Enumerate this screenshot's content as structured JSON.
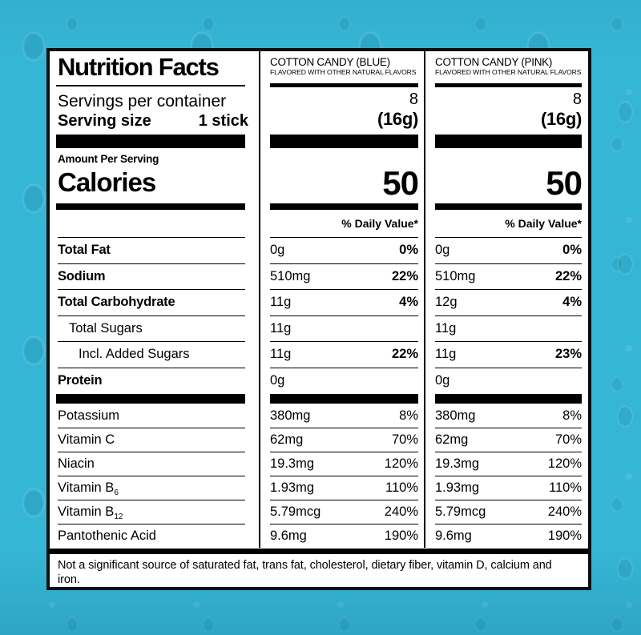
{
  "header": {
    "title": "Nutrition Facts"
  },
  "serving": {
    "per_container_label": "Servings per container",
    "size_label": "Serving size",
    "size_value": "1 stick"
  },
  "calories_section": {
    "amount_per_serving_label": "Amount Per Serving",
    "calories_label": "Calories"
  },
  "dv_header": "% Daily Value*",
  "columns": {
    "blue": {
      "name": "COTTON CANDY (BLUE)",
      "subtitle": "FLAVORED WITH OTHER NATURAL FLAVORS",
      "servings": "8",
      "serving_size": "(16g)",
      "calories": "50"
    },
    "pink": {
      "name": "COTTON CANDY (PINK)",
      "subtitle": "FLAVORED WITH OTHER NATURAL FLAVORS",
      "servings": "8",
      "serving_size": "(16g)",
      "calories": "50"
    }
  },
  "rows": [
    {
      "label": "Total Fat",
      "blue_amount": "0g",
      "blue_dv": "0%",
      "pink_amount": "0g",
      "pink_dv": "0%"
    },
    {
      "label": "Sodium",
      "blue_amount": "510mg",
      "blue_dv": "22%",
      "pink_amount": "510mg",
      "pink_dv": "22%"
    },
    {
      "label": "Total Carbohydrate",
      "blue_amount": "11g",
      "blue_dv": "4%",
      "pink_amount": "12g",
      "pink_dv": "4%"
    },
    {
      "label": "Total Sugars",
      "blue_amount": "11g",
      "blue_dv": "",
      "pink_amount": "11g",
      "pink_dv": ""
    },
    {
      "label": "Incl. Added Sugars",
      "blue_amount": "11g",
      "blue_dv": "22%",
      "pink_amount": "11g",
      "pink_dv": "23%"
    },
    {
      "label": "Protein",
      "blue_amount": "0g",
      "blue_dv": "",
      "pink_amount": "0g",
      "pink_dv": ""
    },
    {
      "label": "Potassium",
      "blue_amount": "380mg",
      "blue_dv": "8%",
      "pink_amount": "380mg",
      "pink_dv": "8%"
    },
    {
      "label": "Vitamin C",
      "blue_amount": "62mg",
      "blue_dv": "70%",
      "pink_amount": "62mg",
      "pink_dv": "70%"
    },
    {
      "label": "Niacin",
      "blue_amount": "19.3mg",
      "blue_dv": "120%",
      "pink_amount": "19.3mg",
      "pink_dv": "120%"
    },
    {
      "label": "Vitamin B",
      "label_sub": "6",
      "blue_amount": "1.93mg",
      "blue_dv": "110%",
      "pink_amount": "1.93mg",
      "pink_dv": "110%"
    },
    {
      "label": "Vitamin B",
      "label_sub": "12",
      "blue_amount": "5.79mcg",
      "blue_dv": "240%",
      "pink_amount": "5.79mcg",
      "pink_dv": "240%"
    },
    {
      "label": "Pantothenic Acid",
      "blue_amount": "9.6mg",
      "blue_dv": "190%",
      "pink_amount": "9.6mg",
      "pink_dv": "190%"
    }
  ],
  "footnote": "Not a significant source of saturated fat, trans fat, cholesterol, dietary fiber, vitamin D, calcium and iron.",
  "colors": {
    "background": "#36b6d6",
    "label_background": "#ffffff",
    "text": "#000000",
    "border": "#0a0f12"
  }
}
